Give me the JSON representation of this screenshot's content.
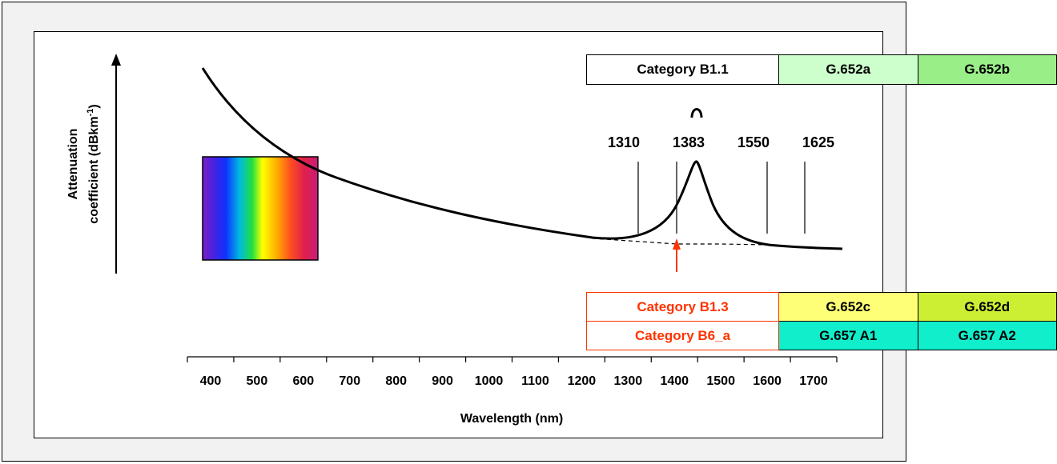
{
  "y_axis": {
    "label_line1": "Attenuation",
    "label_line2": "coefficient (dBkm",
    "label_superscript": "-1",
    "label_end": ")"
  },
  "x_axis": {
    "label": "Wavelength (nm)",
    "ticks": [
      "400",
      "500",
      "600",
      "700",
      "800",
      "900",
      "1000",
      "1100",
      "1200",
      "1300",
      "1400",
      "1500",
      "1600",
      "1700"
    ]
  },
  "marked_wavelengths": [
    "1310",
    "1383",
    "1550",
    "1625"
  ],
  "table_b11": {
    "category": "Category B1.1",
    "cells": [
      {
        "label": "G.652a",
        "color": "#ccffcc"
      },
      {
        "label": "G.652b",
        "color": "#99ee88"
      }
    ]
  },
  "table_b13": {
    "rows": [
      {
        "category": "Category B1.3",
        "cells": [
          {
            "label": "G.652c",
            "color": "#ffff77"
          },
          {
            "label": "G.652d",
            "color": "#ccee33"
          }
        ]
      },
      {
        "category": "Category B6_a",
        "cells": [
          {
            "label": "G.657 A1",
            "color": "#11eecc"
          },
          {
            "label": "G.657 A2",
            "color": "#11eecc"
          }
        ]
      }
    ]
  },
  "colors": {
    "highlight_red": "#ff3300",
    "frame_background": "#f2f2f2"
  }
}
